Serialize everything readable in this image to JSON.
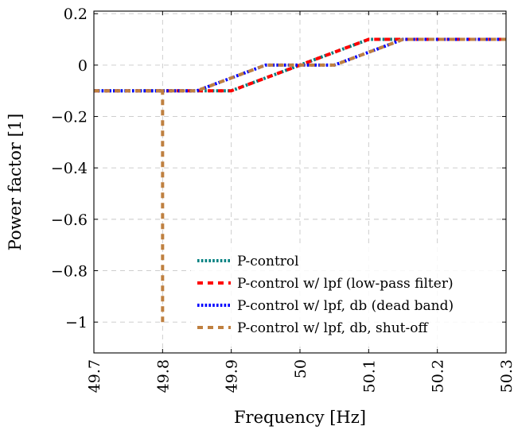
{
  "chart_data": {
    "type": "line",
    "xlabel": "Frequency [Hz]",
    "ylabel": "Power factor [1]",
    "xlim": [
      49.7,
      50.3
    ],
    "ylim": [
      -1.12,
      0.21
    ],
    "grid": true,
    "legend_position": "bottom-right",
    "x_ticks": [
      {
        "value": 49.7,
        "label": "49.7"
      },
      {
        "value": 49.8,
        "label": "49.8"
      },
      {
        "value": 49.9,
        "label": "49.9"
      },
      {
        "value": 50.0,
        "label": "50"
      },
      {
        "value": 50.1,
        "label": "50.1"
      },
      {
        "value": 50.2,
        "label": "50.2"
      },
      {
        "value": 50.3,
        "label": "50.3"
      }
    ],
    "y_ticks": [
      {
        "value": 0.2,
        "label": "0.2"
      },
      {
        "value": 0,
        "label": "0"
      },
      {
        "value": -0.2,
        "label": "−0.2"
      },
      {
        "value": -0.4,
        "label": "−0.4"
      },
      {
        "value": -0.6,
        "label": "−0.6"
      },
      {
        "value": -0.8,
        "label": "−0.8"
      },
      {
        "value": -1,
        "label": "−1"
      }
    ],
    "series": [
      {
        "name": "P-control",
        "color": "#008080",
        "style": "dotted",
        "x": [
          49.7,
          49.9,
          50.1,
          50.3
        ],
        "y": [
          -0.1,
          -0.1,
          0.1,
          0.1
        ]
      },
      {
        "name": "P-control w/ lpf (low-pass filter)",
        "color": "#ff0000",
        "style": "dashed",
        "x": [
          49.7,
          49.9,
          50.1,
          50.3
        ],
        "y": [
          -0.1,
          -0.1,
          0.1,
          0.1
        ]
      },
      {
        "name": "P-control w/ lpf, db (dead band)",
        "color": "#0000ff",
        "style": "dotted",
        "x": [
          49.7,
          49.85,
          49.95,
          50.05,
          50.15,
          50.3
        ],
        "y": [
          -0.1,
          -0.1,
          0,
          0,
          0.1,
          0.1
        ]
      },
      {
        "name": "P-control w/ lpf, db, shut-off",
        "color": "#bf8040",
        "style": "dashed",
        "x": [
          49.8,
          49.8,
          49.85,
          49.95,
          50.05,
          50.15,
          50.3
        ],
        "y": [
          -1,
          -0.1,
          -0.1,
          0,
          0,
          0.1,
          0.1
        ],
        "extra_segment": {
          "x": [
            49.7,
            49.8
          ],
          "y": [
            -0.1,
            -0.1
          ]
        }
      }
    ]
  }
}
